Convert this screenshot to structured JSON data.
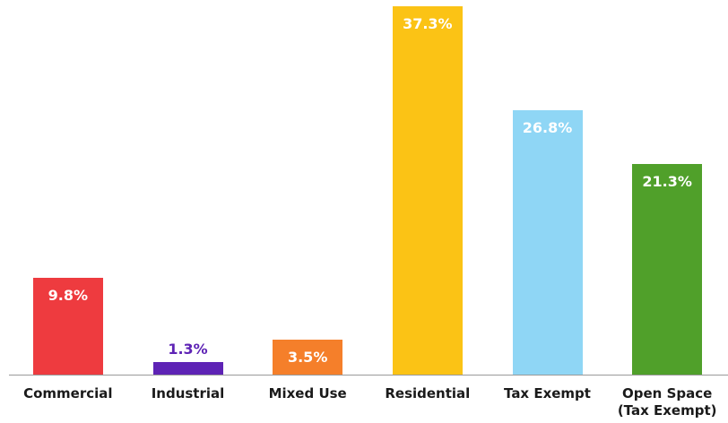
{
  "chart_data": {
    "type": "bar",
    "categories": [
      "Commercial",
      "Industrial",
      "Mixed Use",
      "Residential",
      "Tax Exempt",
      "Open Space (Tax Exempt)"
    ],
    "values": [
      9.8,
      1.3,
      3.5,
      37.3,
      26.8,
      21.3
    ],
    "value_labels": [
      "9.8%",
      "1.3%",
      "3.5%",
      "37.3%",
      "26.8%",
      "21.3%"
    ],
    "colors": [
      "#ee3b3f",
      "#5e23b5",
      "#f57f2a",
      "#fbc315",
      "#8fd6f5",
      "#50a02a"
    ]
  }
}
